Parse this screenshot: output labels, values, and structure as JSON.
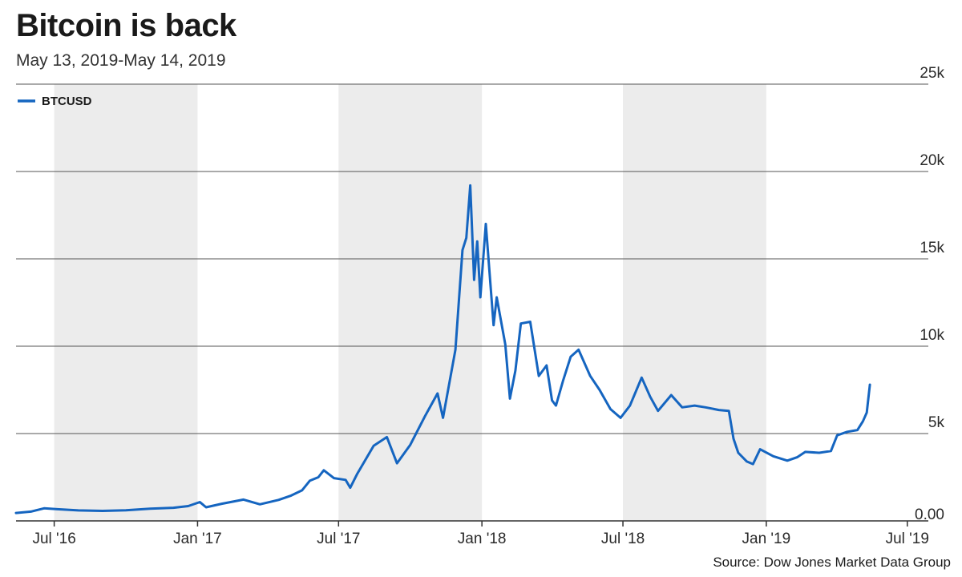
{
  "title": "Bitcoin is back",
  "subtitle": "May 13, 2019-May 14, 2019",
  "source": "Source: Dow Jones Market Data Group",
  "colors": {
    "line": "#1565c0",
    "band": "#ececec",
    "grid": "#555555",
    "axis": "#333333"
  },
  "chart_data": {
    "type": "line",
    "title": "Bitcoin is back",
    "x_type": "date",
    "xlim": [
      "2016-05-13",
      "2019-07-28"
    ],
    "ylim": [
      0,
      25000
    ],
    "y_ticks": [
      0,
      5000,
      10000,
      15000,
      20000,
      25000
    ],
    "y_tick_labels": [
      "0.00",
      "5k",
      "10k",
      "15k",
      "20k",
      "25k"
    ],
    "x_ticks": [
      {
        "date": "2016-07-01",
        "label": "Jul '16"
      },
      {
        "date": "2017-01-01",
        "label": "Jan '17"
      },
      {
        "date": "2017-07-01",
        "label": "Jul '17"
      },
      {
        "date": "2018-01-01",
        "label": "Jan '18"
      },
      {
        "date": "2018-07-01",
        "label": "Jul '18"
      },
      {
        "date": "2019-01-01",
        "label": "Jan '19"
      },
      {
        "date": "2019-07-01",
        "label": "Jul '19"
      }
    ],
    "shaded_bands": [
      [
        "2016-07-01",
        "2017-01-01"
      ],
      [
        "2017-07-01",
        "2018-01-01"
      ],
      [
        "2018-07-01",
        "2019-01-01"
      ]
    ],
    "grid": true,
    "legend_position": "top-left",
    "series": [
      {
        "name": "BTCUSD",
        "points": [
          [
            "2016-05-13",
            455
          ],
          [
            "2016-06-01",
            530
          ],
          [
            "2016-06-18",
            720
          ],
          [
            "2016-07-05",
            670
          ],
          [
            "2016-08-01",
            600
          ],
          [
            "2016-09-01",
            575
          ],
          [
            "2016-10-01",
            610
          ],
          [
            "2016-11-01",
            700
          ],
          [
            "2016-12-01",
            750
          ],
          [
            "2016-12-20",
            850
          ],
          [
            "2017-01-04",
            1080
          ],
          [
            "2017-01-12",
            780
          ],
          [
            "2017-02-01",
            980
          ],
          [
            "2017-03-01",
            1220
          ],
          [
            "2017-03-22",
            950
          ],
          [
            "2017-04-15",
            1200
          ],
          [
            "2017-05-01",
            1450
          ],
          [
            "2017-05-15",
            1750
          ],
          [
            "2017-05-25",
            2300
          ],
          [
            "2017-06-05",
            2500
          ],
          [
            "2017-06-12",
            2900
          ],
          [
            "2017-06-25",
            2450
          ],
          [
            "2017-07-10",
            2350
          ],
          [
            "2017-07-16",
            1900
          ],
          [
            "2017-07-25",
            2700
          ],
          [
            "2017-08-15",
            4300
          ],
          [
            "2017-09-01",
            4800
          ],
          [
            "2017-09-14",
            3300
          ],
          [
            "2017-10-01",
            4350
          ],
          [
            "2017-10-20",
            6000
          ],
          [
            "2017-11-05",
            7300
          ],
          [
            "2017-11-12",
            5900
          ],
          [
            "2017-11-28",
            9800
          ],
          [
            "2017-12-07",
            15500
          ],
          [
            "2017-12-12",
            16200
          ],
          [
            "2017-12-17",
            19200
          ],
          [
            "2017-12-22",
            13800
          ],
          [
            "2017-12-26",
            16000
          ],
          [
            "2017-12-30",
            12800
          ],
          [
            "2018-01-06",
            17000
          ],
          [
            "2018-01-16",
            11200
          ],
          [
            "2018-01-20",
            12800
          ],
          [
            "2018-01-31",
            10100
          ],
          [
            "2018-02-06",
            7000
          ],
          [
            "2018-02-13",
            8600
          ],
          [
            "2018-02-20",
            11300
          ],
          [
            "2018-03-04",
            11400
          ],
          [
            "2018-03-15",
            8300
          ],
          [
            "2018-03-25",
            8900
          ],
          [
            "2018-04-01",
            6900
          ],
          [
            "2018-04-06",
            6600
          ],
          [
            "2018-04-15",
            8000
          ],
          [
            "2018-04-25",
            9400
          ],
          [
            "2018-05-05",
            9800
          ],
          [
            "2018-05-20",
            8300
          ],
          [
            "2018-06-01",
            7500
          ],
          [
            "2018-06-15",
            6400
          ],
          [
            "2018-06-28",
            5900
          ],
          [
            "2018-07-10",
            6600
          ],
          [
            "2018-07-25",
            8200
          ],
          [
            "2018-08-05",
            7100
          ],
          [
            "2018-08-15",
            6300
          ],
          [
            "2018-09-01",
            7200
          ],
          [
            "2018-09-15",
            6500
          ],
          [
            "2018-10-01",
            6600
          ],
          [
            "2018-10-15",
            6500
          ],
          [
            "2018-11-01",
            6350
          ],
          [
            "2018-11-14",
            6300
          ],
          [
            "2018-11-20",
            4700
          ],
          [
            "2018-11-26",
            3900
          ],
          [
            "2018-12-07",
            3400
          ],
          [
            "2018-12-15",
            3250
          ],
          [
            "2018-12-24",
            4100
          ],
          [
            "2019-01-10",
            3700
          ],
          [
            "2019-01-28",
            3450
          ],
          [
            "2019-02-10",
            3650
          ],
          [
            "2019-02-20",
            3950
          ],
          [
            "2019-03-10",
            3900
          ],
          [
            "2019-03-25",
            4000
          ],
          [
            "2019-04-02",
            4900
          ],
          [
            "2019-04-15",
            5100
          ],
          [
            "2019-04-28",
            5200
          ],
          [
            "2019-05-05",
            5700
          ],
          [
            "2019-05-10",
            6200
          ],
          [
            "2019-05-14",
            7800
          ]
        ]
      }
    ]
  }
}
